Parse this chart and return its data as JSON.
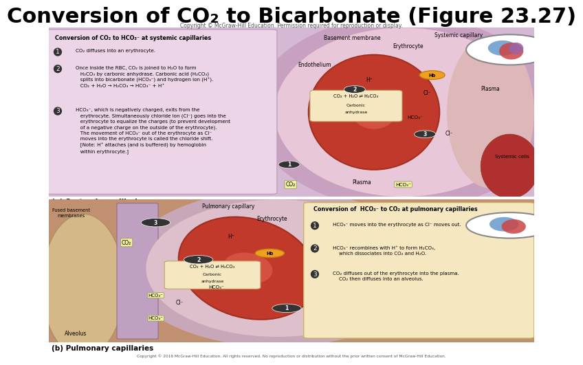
{
  "title": "Conversion of CO₂ to Bicarbonate (Figure 23.27)",
  "title_fontsize": 22,
  "title_fontweight": "bold",
  "copyright_top": "Copyright © McGraw-Hill Education. Permission required for reproduction or display.",
  "copyright_bottom": "Copyright © 2016 McGraw-Hill Education. All rights reserved. No reproduction or distribution without the prior written consent of McGraw-Hill Education.",
  "panel_a_label": "(a) Systemic capillaries",
  "panel_b_label": "(b) Pulmonary capillaries",
  "bg_color": "#ffffff",
  "erythrocyte_color": "#c0392b",
  "erythrocyte_edge": "#a03020",
  "panel_a_bg": "#d4b8d4",
  "panel_b_bg": "#c09070",
  "text_box_a_bg": "#edd5e8",
  "text_box_b_bg": "#f5e8c0",
  "hb_color": "#f0a020",
  "hb_edge": "#c08010",
  "circle_num_bg": "#333333",
  "rxn_box_bg": "#f5e8c0",
  "rxn_box_edge": "#c0a060"
}
